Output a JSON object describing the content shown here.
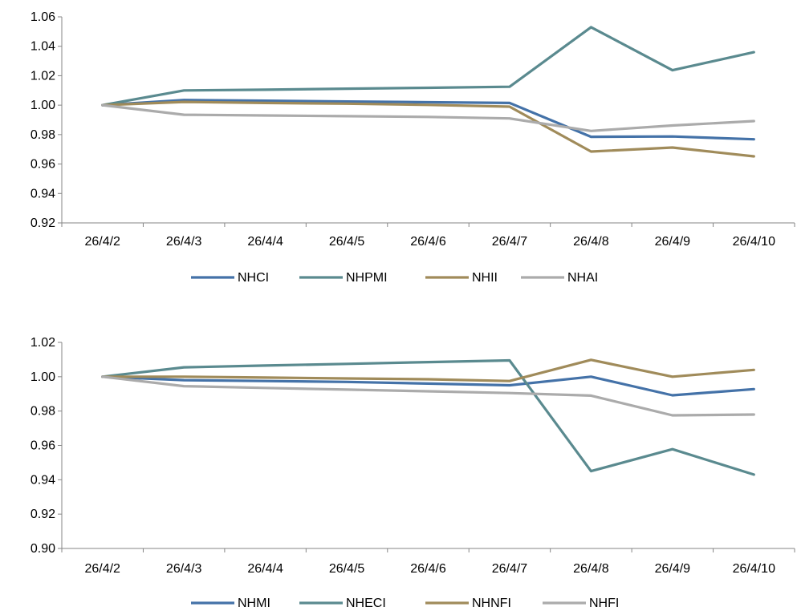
{
  "chart_data": [
    {
      "type": "line",
      "categories": [
        "26/4/2",
        "26/4/3",
        "26/4/4",
        "26/4/5",
        "26/4/6",
        "26/4/7",
        "26/4/8",
        "26/4/9",
        "26/4/10"
      ],
      "ylim": [
        0.92,
        1.06
      ],
      "yticks": [
        "1.06",
        "1.04",
        "1.02",
        "1.00",
        "0.98",
        "0.96",
        "0.94",
        "0.92"
      ],
      "grid": false,
      "legend_position": "bottom",
      "series": [
        {
          "name": "NHCI",
          "color": "#4472A8",
          "values": [
            1.0,
            1.0035,
            1.003,
            1.0025,
            1.002,
            1.0015,
            0.9785,
            0.9787,
            0.9768
          ]
        },
        {
          "name": "NHPMI",
          "color": "#5A8A8F",
          "values": [
            1.0,
            1.01,
            1.0105,
            1.0112,
            1.0118,
            1.0125,
            1.053,
            1.0237,
            1.036
          ]
        },
        {
          "name": "NHII",
          "color": "#A08B5A",
          "values": [
            1.0,
            1.0022,
            1.0015,
            1.001,
            1.0002,
            0.999,
            0.9685,
            0.9712,
            0.9652
          ]
        },
        {
          "name": "NHAI",
          "color": "#ABABAB",
          "values": [
            1.0,
            0.9935,
            0.993,
            0.9925,
            0.992,
            0.991,
            0.9825,
            0.9862,
            0.9892
          ]
        }
      ]
    },
    {
      "type": "line",
      "categories": [
        "26/4/2",
        "26/4/3",
        "26/4/4",
        "26/4/5",
        "26/4/6",
        "26/4/7",
        "26/4/8",
        "26/4/9",
        "26/4/10"
      ],
      "ylim": [
        0.9,
        1.02
      ],
      "yticks": [
        "1.02",
        "1.00",
        "0.98",
        "0.96",
        "0.94",
        "0.92",
        "0.90"
      ],
      "grid": false,
      "legend_position": "bottom",
      "series": [
        {
          "name": "NHMI",
          "color": "#4472A8",
          "values": [
            1.0,
            0.998,
            0.9975,
            0.997,
            0.996,
            0.995,
            1.0,
            0.9892,
            0.9928
          ]
        },
        {
          "name": "NHECI",
          "color": "#5A8A8F",
          "values": [
            1.0,
            1.0055,
            1.0065,
            1.0075,
            1.0085,
            1.0095,
            0.945,
            0.9578,
            0.943
          ]
        },
        {
          "name": "NHNFI",
          "color": "#A08B5A",
          "values": [
            1.0,
            1.0,
            0.9995,
            0.999,
            0.9985,
            0.9975,
            1.0098,
            1.0,
            1.004
          ]
        },
        {
          "name": "NHFI",
          "color": "#ABABAB",
          "values": [
            1.0,
            0.9945,
            0.9935,
            0.9925,
            0.9915,
            0.9905,
            0.989,
            0.9775,
            0.978
          ]
        }
      ]
    }
  ]
}
